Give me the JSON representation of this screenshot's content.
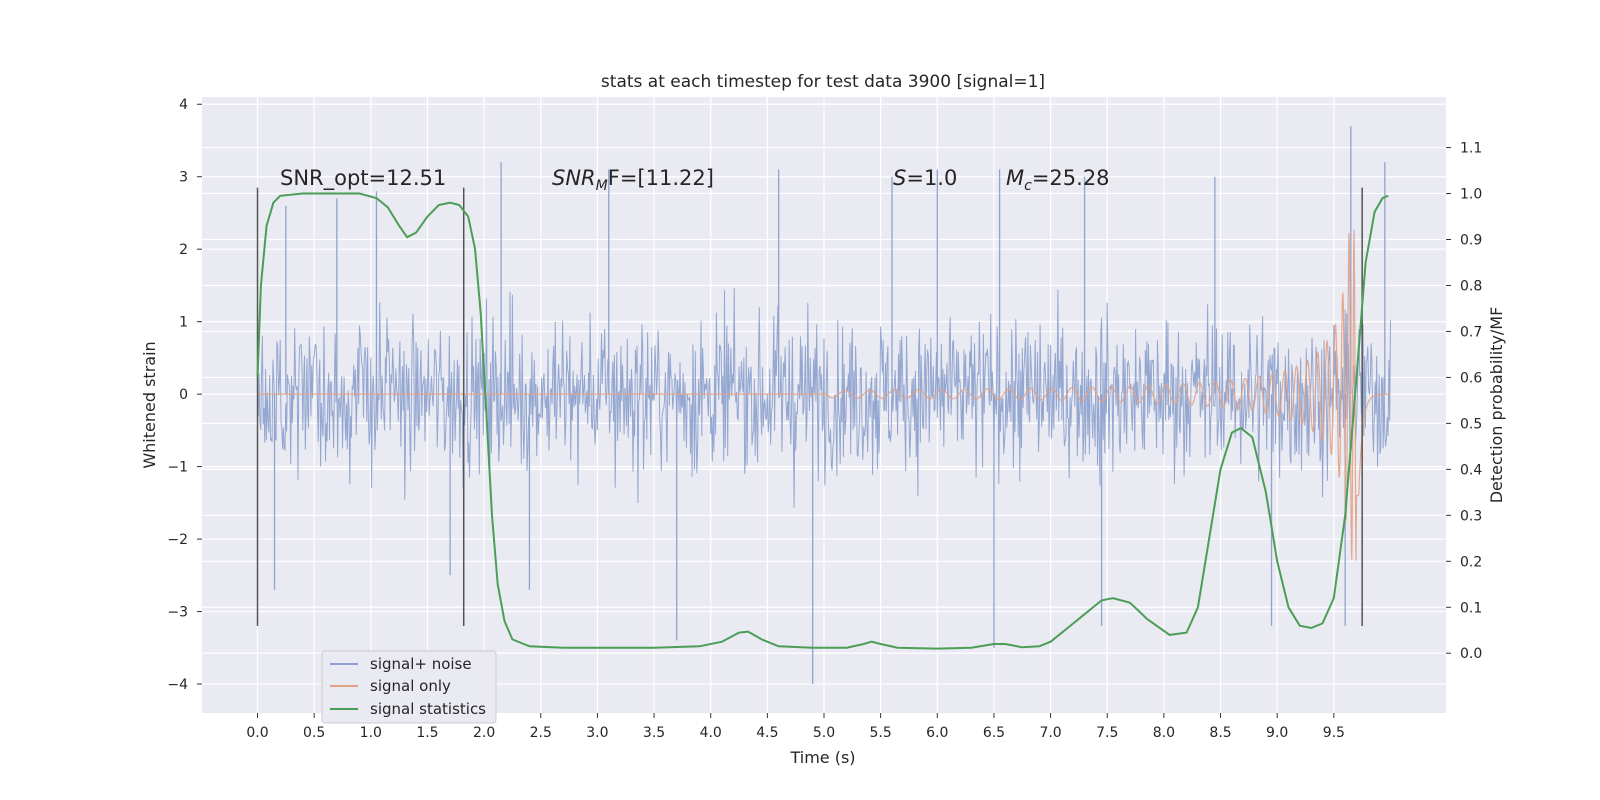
{
  "chart_data": {
    "type": "line",
    "title": "stats at each timestep for test data 3900 [signal=1]",
    "xlabel": "Time (s)",
    "ylabel": "Whitened strain",
    "ylabel_right": "Detection probability/MF",
    "xlim": [
      -0.49,
      10.49
    ],
    "ylim": [
      -4.4,
      4.1
    ],
    "ylim_right": [
      -0.13,
      1.21
    ],
    "x_ticks": [
      "0.0",
      "0.5",
      "1.0",
      "1.5",
      "2.0",
      "2.5",
      "3.0",
      "3.5",
      "4.0",
      "4.5",
      "5.0",
      "5.5",
      "6.0",
      "6.5",
      "7.0",
      "7.5",
      "8.0",
      "8.5",
      "9.0",
      "9.5"
    ],
    "y_ticks": [
      "4",
      "3",
      "2",
      "1",
      "0",
      "−1",
      "−2",
      "−3",
      "−4"
    ],
    "y_right_ticks": [
      "1.1",
      "1.0",
      "0.9",
      "0.8",
      "0.7",
      "0.6",
      "0.5",
      "0.4",
      "0.3",
      "0.2",
      "0.1",
      "0.0"
    ],
    "grid": true,
    "legend_position": "lower-left",
    "annotations": {
      "snr_opt": "SNR_opt=12.51",
      "snr_mf": "SNR",
      "snr_mf_sub": "M",
      "snr_mf_rest": "F=[11.22]",
      "s_label": "S",
      "s_value": "=1.0",
      "mc_label": "M",
      "mc_sub": "c",
      "mc_value": "=25.28"
    },
    "vertical_markers": [
      0.0,
      1.82,
      9.75
    ],
    "series": [
      {
        "name": "signal+ noise",
        "color": "#8fa3cf",
        "description_of_envelope": "dense noise, typical amplitude ±1.6, peaks to about ±3.2",
        "x_range": [
          0.0,
          10.0
        ],
        "peaks_positive": [
          [
            0.25,
            2.6
          ],
          [
            0.7,
            2.7
          ],
          [
            1.05,
            2.8
          ],
          [
            2.15,
            3.2
          ],
          [
            3.1,
            3.1
          ],
          [
            4.6,
            3.1
          ],
          [
            5.6,
            3.0
          ],
          [
            6.0,
            3.1
          ],
          [
            6.55,
            3.1
          ],
          [
            7.3,
            3.0
          ],
          [
            8.45,
            3.0
          ],
          [
            9.65,
            3.7
          ],
          [
            9.95,
            3.2
          ]
        ],
        "peaks_negative": [
          [
            0.15,
            -2.7
          ],
          [
            1.7,
            -2.5
          ],
          [
            2.4,
            -2.7
          ],
          [
            3.7,
            -3.4
          ],
          [
            4.9,
            -4.0
          ],
          [
            6.5,
            -3.5
          ],
          [
            7.45,
            -3.2
          ],
          [
            8.95,
            -3.2
          ],
          [
            9.6,
            -3.2
          ]
        ]
      },
      {
        "name": "signal only",
        "color": "#e3a184",
        "description_of_shape": "chirp, flat until 5.0 s then growing oscillation, peak amplitude ±2.3 near 9.7 s",
        "x_range": [
          0.0,
          10.0
        ]
      },
      {
        "name": "signal statistics",
        "color": "#4c9e57",
        "axis": "right",
        "points": [
          [
            0.0,
            0.6
          ],
          [
            0.03,
            0.8
          ],
          [
            0.08,
            0.93
          ],
          [
            0.14,
            0.98
          ],
          [
            0.2,
            0.995
          ],
          [
            0.4,
            1.0
          ],
          [
            0.6,
            1.0
          ],
          [
            0.9,
            1.0
          ],
          [
            1.05,
            0.99
          ],
          [
            1.15,
            0.97
          ],
          [
            1.25,
            0.93
          ],
          [
            1.32,
            0.905
          ],
          [
            1.4,
            0.915
          ],
          [
            1.5,
            0.95
          ],
          [
            1.6,
            0.975
          ],
          [
            1.7,
            0.98
          ],
          [
            1.78,
            0.975
          ],
          [
            1.86,
            0.95
          ],
          [
            1.92,
            0.88
          ],
          [
            1.97,
            0.74
          ],
          [
            2.02,
            0.52
          ],
          [
            2.07,
            0.3
          ],
          [
            2.12,
            0.15
          ],
          [
            2.18,
            0.07
          ],
          [
            2.25,
            0.03
          ],
          [
            2.4,
            0.015
          ],
          [
            2.7,
            0.012
          ],
          [
            3.0,
            0.012
          ],
          [
            3.5,
            0.012
          ],
          [
            3.9,
            0.015
          ],
          [
            4.1,
            0.025
          ],
          [
            4.25,
            0.045
          ],
          [
            4.33,
            0.047
          ],
          [
            4.45,
            0.03
          ],
          [
            4.6,
            0.015
          ],
          [
            4.9,
            0.012
          ],
          [
            5.2,
            0.012
          ],
          [
            5.35,
            0.02
          ],
          [
            5.42,
            0.025
          ],
          [
            5.5,
            0.02
          ],
          [
            5.65,
            0.012
          ],
          [
            6.0,
            0.01
          ],
          [
            6.3,
            0.012
          ],
          [
            6.5,
            0.02
          ],
          [
            6.6,
            0.02
          ],
          [
            6.75,
            0.013
          ],
          [
            6.9,
            0.015
          ],
          [
            7.0,
            0.025
          ],
          [
            7.15,
            0.055
          ],
          [
            7.3,
            0.085
          ],
          [
            7.45,
            0.115
          ],
          [
            7.55,
            0.12
          ],
          [
            7.7,
            0.11
          ],
          [
            7.85,
            0.075
          ],
          [
            8.05,
            0.04
          ],
          [
            8.2,
            0.045
          ],
          [
            8.3,
            0.1
          ],
          [
            8.4,
            0.25
          ],
          [
            8.5,
            0.4
          ],
          [
            8.6,
            0.48
          ],
          [
            8.68,
            0.49
          ],
          [
            8.78,
            0.47
          ],
          [
            8.9,
            0.35
          ],
          [
            9.0,
            0.2
          ],
          [
            9.1,
            0.1
          ],
          [
            9.2,
            0.06
          ],
          [
            9.3,
            0.055
          ],
          [
            9.4,
            0.065
          ],
          [
            9.5,
            0.12
          ],
          [
            9.6,
            0.3
          ],
          [
            9.7,
            0.6
          ],
          [
            9.78,
            0.85
          ],
          [
            9.86,
            0.96
          ],
          [
            9.93,
            0.99
          ],
          [
            9.98,
            0.995
          ]
        ]
      }
    ]
  }
}
